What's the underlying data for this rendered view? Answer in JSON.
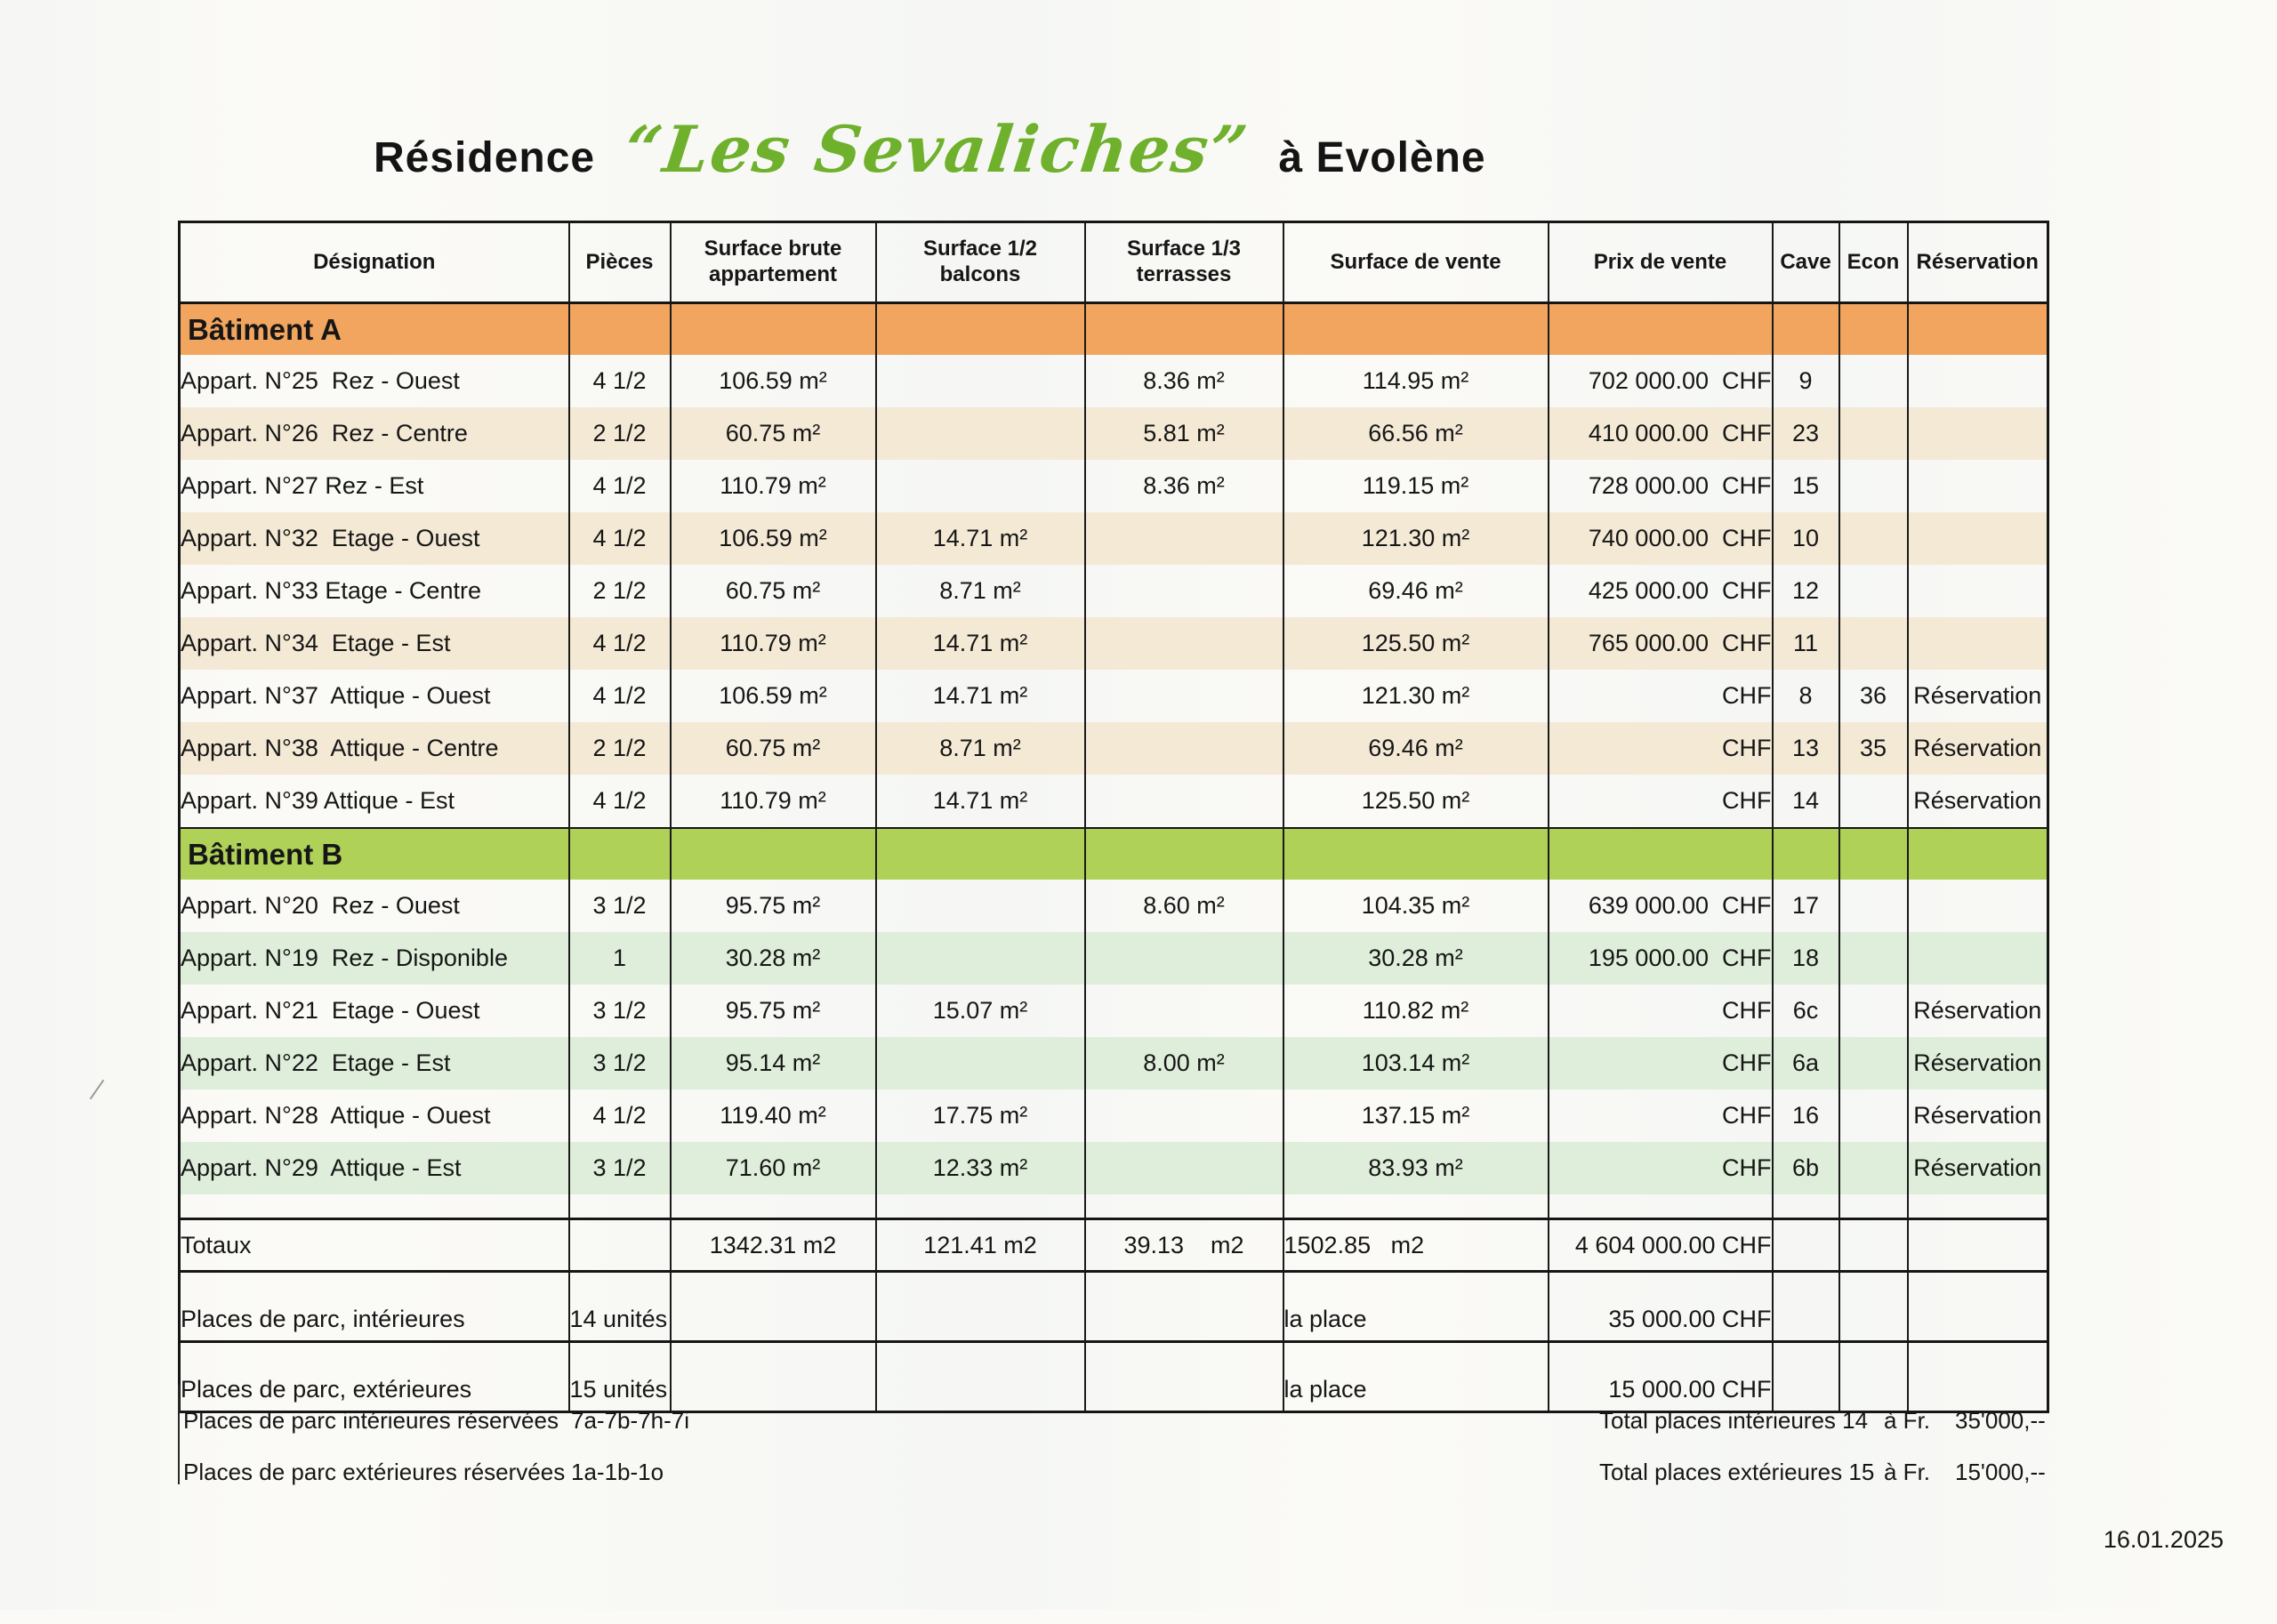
{
  "title": {
    "prefix": "Résidence",
    "name": "“Les Sevaliches”",
    "suffix": "à Evolène"
  },
  "date": "16.01.2025",
  "colors": {
    "section_a_band": "#f1a55e",
    "section_a_tint": "#f3e9d5",
    "section_b_band": "#afd158",
    "section_b_tint": "#dfeeda",
    "title_script_green": "#6fb02c",
    "border_black": "#161616"
  },
  "table": {
    "columns": [
      "Désignation",
      "Pièces",
      "Surface brute appartement",
      "Surface  1/2 balcons",
      "Surface  1/3 terrasses",
      "Surface de vente",
      "Prix de vente",
      "Cave",
      "Econ",
      "Réservation"
    ],
    "sections": [
      {
        "name": "Bâtiment A",
        "rows": [
          {
            "designation": "Appart. N°25  Rez - Ouest",
            "pieces": "4 1/2",
            "brute": "106.59 m²",
            "balcons": "",
            "terrasses": "8.36 m²",
            "vente": "114.95 m²",
            "prix": "702 000.00  CHF",
            "cave": "9",
            "econ": "",
            "reservation": ""
          },
          {
            "designation": "Appart. N°26  Rez - Centre",
            "pieces": "2 1/2",
            "brute": "60.75 m²",
            "balcons": "",
            "terrasses": "5.81 m²",
            "vente": "66.56 m²",
            "prix": "410 000.00  CHF",
            "cave": "23",
            "econ": "",
            "reservation": ""
          },
          {
            "designation": "Appart. N°27 Rez - Est",
            "pieces": "4 1/2",
            "brute": "110.79 m²",
            "balcons": "",
            "terrasses": "8.36 m²",
            "vente": "119.15 m²",
            "prix": "728 000.00  CHF",
            "cave": "15",
            "econ": "",
            "reservation": ""
          },
          {
            "designation": "Appart. N°32  Etage - Ouest",
            "pieces": "4 1/2",
            "brute": "106.59 m²",
            "balcons": "14.71 m²",
            "terrasses": "",
            "vente": "121.30 m²",
            "prix": "740 000.00  CHF",
            "cave": "10",
            "econ": "",
            "reservation": ""
          },
          {
            "designation": "Appart. N°33 Etage - Centre",
            "pieces": "2 1/2",
            "brute": "60.75 m²",
            "balcons": "8.71 m²",
            "terrasses": "",
            "vente": "69.46 m²",
            "prix": "425 000.00  CHF",
            "cave": "12",
            "econ": "",
            "reservation": ""
          },
          {
            "designation": "Appart. N°34  Etage - Est",
            "pieces": "4 1/2",
            "brute": "110.79 m²",
            "balcons": "14.71 m²",
            "terrasses": "",
            "vente": "125.50 m²",
            "prix": "765 000.00  CHF",
            "cave": "11",
            "econ": "",
            "reservation": ""
          },
          {
            "designation": "Appart. N°37  Attique - Ouest",
            "pieces": "4 1/2",
            "brute": "106.59 m²",
            "balcons": "14.71 m²",
            "terrasses": "",
            "vente": "121.30 m²",
            "prix": "CHF",
            "cave": "8",
            "econ": "36",
            "reservation": "Réservation",
            "res_top": true
          },
          {
            "designation": "Appart. N°38  Attique - Centre",
            "pieces": "2 1/2",
            "brute": "60.75 m²",
            "balcons": "8.71 m²",
            "terrasses": "",
            "vente": "69.46 m²",
            "prix": "CHF",
            "cave": "13",
            "econ": "35",
            "reservation": "Réservation"
          },
          {
            "designation": "Appart. N°39 Attique - Est",
            "pieces": "4 1/2",
            "brute": "110.79 m²",
            "balcons": "14.71 m²",
            "terrasses": "",
            "vente": "125.50 m²",
            "prix": "CHF",
            "cave": "14",
            "econ": "",
            "reservation": "Réservation",
            "res_top": true
          }
        ]
      },
      {
        "name": "Bâtiment B",
        "rows": [
          {
            "designation": "Appart. N°20  Rez - Ouest",
            "pieces": "3 1/2",
            "brute": "95.75 m²",
            "balcons": "",
            "terrasses": "8.60 m²",
            "vente": "104.35 m²",
            "prix": "639 000.00  CHF",
            "cave": "17",
            "econ": "",
            "reservation": ""
          },
          {
            "designation": "Appart. N°19  Rez - Disponible",
            "pieces": "1",
            "brute": "30.28 m²",
            "balcons": "",
            "terrasses": "",
            "vente": "30.28 m²",
            "prix": "195 000.00  CHF",
            "cave": "18",
            "econ": "",
            "reservation": ""
          },
          {
            "designation": "Appart. N°21  Etage - Ouest",
            "pieces": "3 1/2",
            "brute": "95.75 m²",
            "balcons": "15.07 m²",
            "terrasses": "",
            "vente": "110.82 m²",
            "prix": "CHF",
            "cave": "6c",
            "econ": "",
            "reservation": "Réservation"
          },
          {
            "designation": "Appart. N°22  Etage - Est",
            "pieces": "3 1/2",
            "brute": "95.14 m²",
            "balcons": "",
            "terrasses": "8.00 m²",
            "vente": "103.14 m²",
            "prix": "CHF",
            "cave": "6a",
            "econ": "",
            "reservation": "Réservation"
          },
          {
            "designation": "Appart. N°28  Attique - Ouest",
            "pieces": "4 1/2",
            "brute": "119.40 m²",
            "balcons": "17.75 m²",
            "terrasses": "",
            "vente": "137.15 m²",
            "prix": "CHF",
            "cave": "16",
            "econ": "",
            "reservation": "Réservation",
            "res_top": true
          },
          {
            "designation": "Appart. N°29  Attique - Est",
            "pieces": "3 1/2",
            "brute": "71.60 m²",
            "balcons": "12.33 m²",
            "terrasses": "",
            "vente": "83.93 m²",
            "prix": "CHF",
            "cave": "6b",
            "econ": "",
            "reservation": "Réservation"
          }
        ]
      }
    ],
    "totals": {
      "label": "Totaux",
      "brute": "1342.31 m2",
      "balcons": "121.41 m2",
      "terrasses": "39.13    m2",
      "vente": "1502.85   m2",
      "prix": "4 604 000.00 CHF"
    },
    "parking": [
      {
        "label": "Places de parc, intérieures",
        "units": "14 unités",
        "vente": "la place",
        "prix": "35 000.00 CHF"
      },
      {
        "label": "Places de parc, extérieures",
        "units": "15 unités",
        "vente": "la place",
        "prix": "15 000.00 CHF"
      }
    ]
  },
  "footer": {
    "lines": [
      {
        "left_label": "Places de parc intérieures réservées",
        "left_value": "7a-7b-7h-7i",
        "right_label": "Total places intérieures 14",
        "right_mid": "à Fr.",
        "right_value": "35'000,--"
      },
      {
        "left_label": "Places de parc extérieures réservées",
        "left_value": "1a-1b-1o",
        "right_label": "Total places extérieures 15",
        "right_mid": "à Fr.",
        "right_value": "15'000,--"
      }
    ]
  }
}
